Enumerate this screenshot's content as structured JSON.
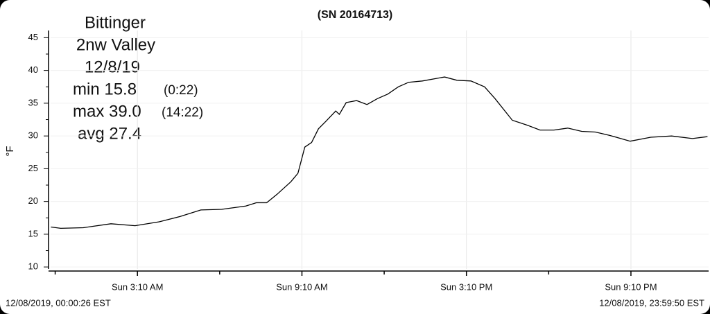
{
  "chart_data": {
    "type": "line",
    "title": "(SN 20164713)",
    "annotations": [
      "Bittinger",
      "2nw Valley",
      "12/8/19",
      "min 15.8",
      "(0:22)",
      "max 39.0",
      "(14:22)",
      "avg 27.4"
    ],
    "y_label": "°F",
    "start_label": "12/08/2019, 00:00:26 EST",
    "end_label": "12/08/2019, 23:59:50 EST",
    "x": [
      0.01,
      0.37,
      1.19,
      2.2,
      3.08,
      3.96,
      4.72,
      5.48,
      6.24,
      7.12,
      7.5,
      7.88,
      8.26,
      8.76,
      9.02,
      9.27,
      9.52,
      9.77,
      10.03,
      10.4,
      10.53,
      10.78,
      11.16,
      11.54,
      11.92,
      12.3,
      12.68,
      13.06,
      13.56,
      14.37,
      14.82,
      15.33,
      15.83,
      16.21,
      16.84,
      17.35,
      17.85,
      18.36,
      18.86,
      19.37,
      19.87,
      20.38,
      21.14,
      21.89,
      22.65,
      23.41,
      23.96
    ],
    "series": [
      {
        "color": "#000000",
        "values": [
          16.1,
          15.9,
          16.0,
          16.6,
          16.3,
          16.9,
          17.7,
          18.7,
          18.8,
          19.3,
          19.8,
          19.8,
          21.1,
          23.0,
          24.3,
          28.3,
          29.0,
          31.1,
          32.2,
          33.8,
          33.3,
          35.1,
          35.4,
          34.8,
          35.7,
          36.4,
          37.5,
          38.2,
          38.4,
          39.0,
          38.5,
          38.4,
          37.5,
          35.7,
          32.4,
          31.7,
          30.9,
          30.9,
          31.2,
          30.7,
          30.6,
          30.1,
          29.2,
          29.8,
          30.0,
          29.6,
          29.9
        ]
      }
    ],
    "xlim": [
      0,
      24
    ],
    "xticks": [
      {
        "value": 3.1667,
        "label": "Sun 3:10 AM"
      },
      {
        "value": 9.1667,
        "label": "Sun 9:10 AM"
      },
      {
        "value": 15.1667,
        "label": "Sun 3:10 PM"
      },
      {
        "value": 21.1667,
        "label": "Sun 9:10 PM"
      }
    ],
    "xminorticks": [
      0.1667,
      6.1667,
      12.1667,
      18.1667
    ],
    "ylim": [
      9.7,
      46.1
    ],
    "yticks": [
      10,
      15,
      20,
      25,
      30,
      35,
      40,
      45
    ],
    "yminorticks": [
      12.5,
      17.5,
      22.5,
      27.5,
      32.5,
      37.5,
      42.5
    ],
    "grid": true
  }
}
